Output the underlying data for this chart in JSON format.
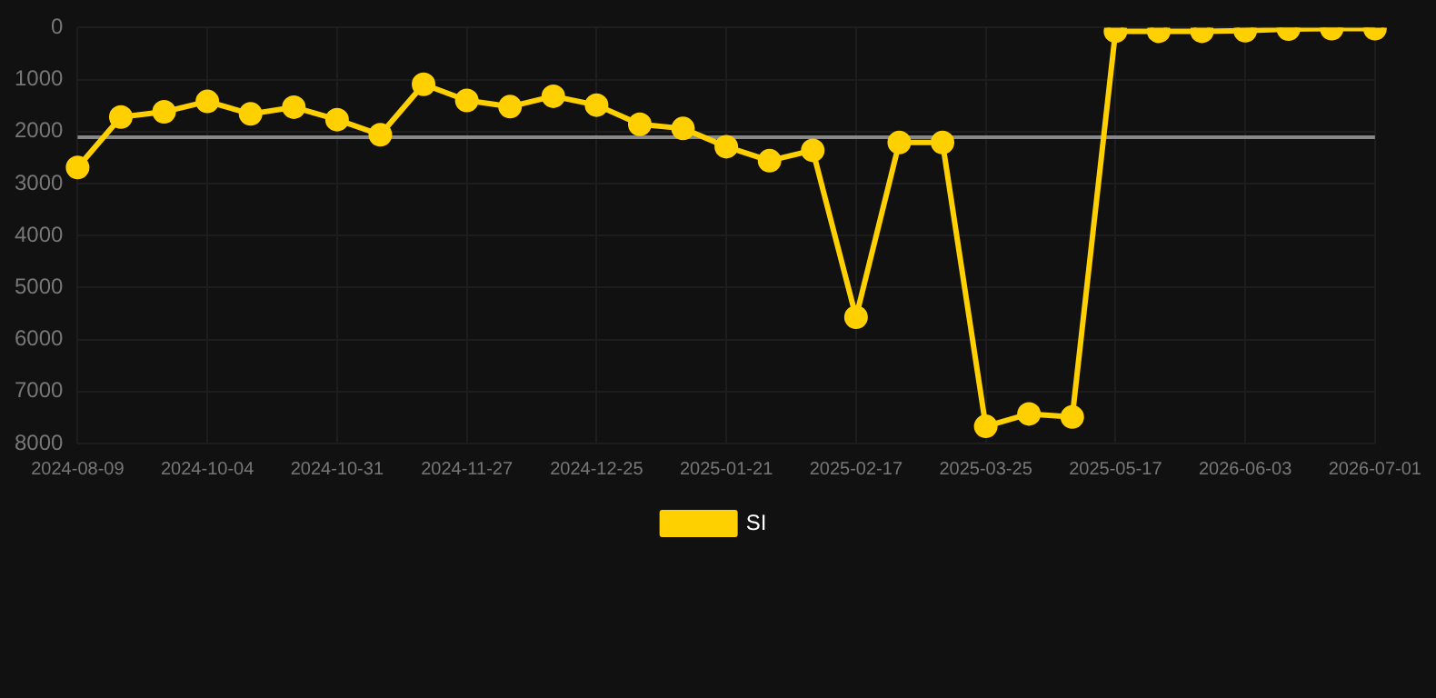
{
  "chart_data": {
    "type": "line",
    "categories": [
      "2024-08-09",
      null,
      null,
      "2024-10-04",
      null,
      null,
      "2024-10-31",
      null,
      null,
      "2024-11-27",
      null,
      null,
      "2024-12-25",
      null,
      null,
      "2025-01-21",
      null,
      null,
      "2025-02-17",
      null,
      null,
      "2025-03-25",
      null,
      null,
      "2025-05-17",
      null,
      null,
      "2026-06-03",
      null,
      null,
      "2026-07-01"
    ],
    "series": [
      {
        "name": "SI",
        "color": "#ffd000",
        "values": [
          2690,
          1720,
          1620,
          1420,
          1660,
          1530,
          1770,
          2060,
          1090,
          1400,
          1520,
          1320,
          1490,
          1860,
          1940,
          2290,
          2560,
          2360,
          5570,
          2210,
          2210,
          7670,
          7430,
          7490,
          70,
          70,
          70,
          60,
          30,
          20,
          20
        ]
      }
    ],
    "ylim": [
      8000,
      0
    ],
    "yticks": [
      0,
      1000,
      2000,
      3000,
      4000,
      5000,
      6000,
      7000,
      8000
    ],
    "ref_lines": [
      {
        "axis": "y",
        "value": 2110,
        "color": "#888888"
      }
    ],
    "grid": true,
    "legend": "bottom",
    "marker": "circle",
    "line_style": "solid"
  }
}
